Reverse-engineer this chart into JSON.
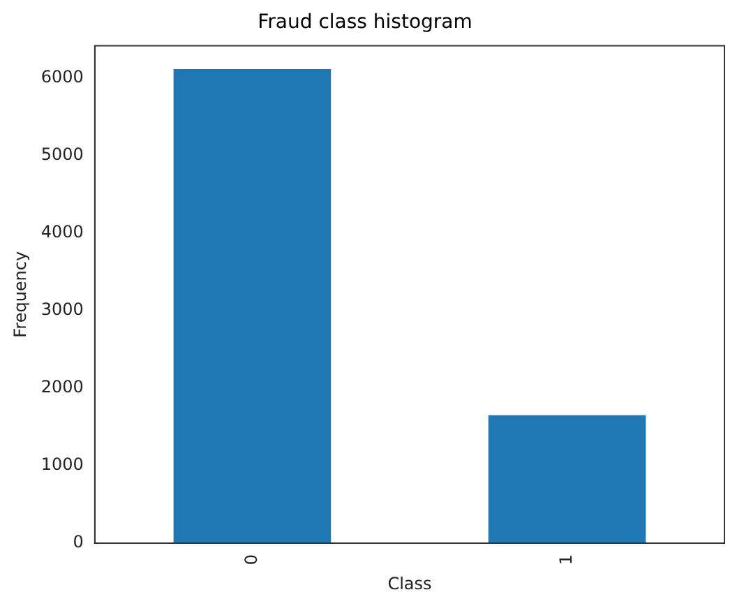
{
  "chart_data": {
    "type": "bar",
    "title": "Fraud class histogram",
    "xlabel": "Class",
    "ylabel": "Frequency",
    "categories": [
      "0",
      "1"
    ],
    "values": [
      6120,
      1650
    ],
    "color": "#1f77b4",
    "ylim": [
      0,
      6420
    ],
    "yticks": [
      0,
      1000,
      2000,
      3000,
      4000,
      5000,
      6000
    ],
    "grid": false,
    "legend": false
  }
}
